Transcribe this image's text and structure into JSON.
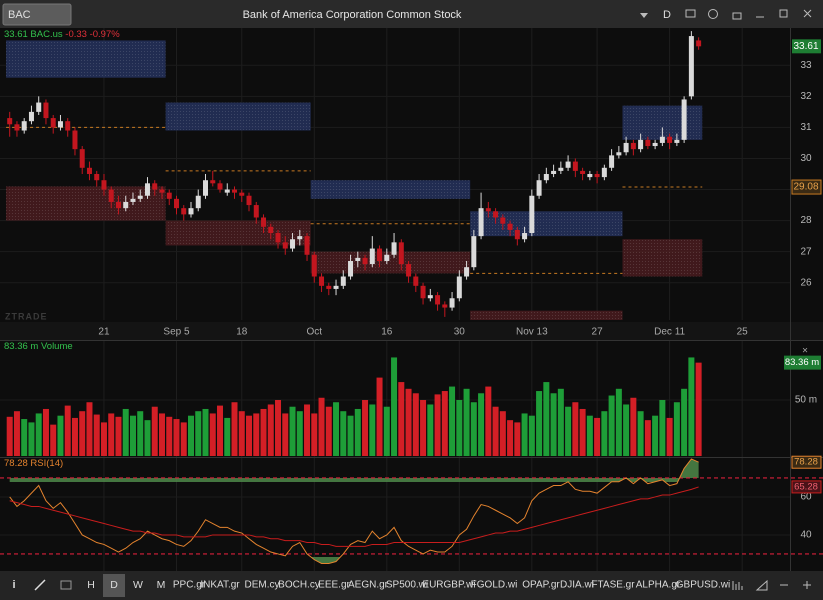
{
  "top_bar": {
    "symbol": "BAC",
    "title": "Bank of America Corporation Common Stock",
    "interval": "D"
  },
  "watermark": "ZTRADE",
  "chart_data": [
    {
      "type": "candlestick",
      "header": {
        "symbol": "BAC.us",
        "change": "-0.33",
        "change_pct": "-0.97%"
      },
      "up_color": "#dadada",
      "down_color": "#c3161f",
      "ylim": [
        24.8,
        34.2
      ],
      "yticks": [
        26,
        27,
        28,
        29,
        30,
        31,
        32,
        33
      ],
      "xlim": [
        -1.2,
        107.6
      ],
      "xticks": [
        {
          "value": 13,
          "label": "21"
        },
        {
          "value": 23,
          "label": "Sep 5"
        },
        {
          "value": 32,
          "label": "18"
        },
        {
          "value": 42,
          "label": "Oct"
        },
        {
          "value": 52,
          "label": "16"
        },
        {
          "value": 62,
          "label": "30"
        },
        {
          "value": 72,
          "label": "Nov 13"
        },
        {
          "value": 81,
          "label": "27"
        },
        {
          "value": 91,
          "label": "Dec 11"
        },
        {
          "value": 101,
          "label": "25"
        }
      ],
      "supply_color": "#26335e",
      "demand_color": "#4a1c20",
      "level_color": "#c87a22",
      "zones": [
        {
          "start": 0,
          "end": 21,
          "supply": [
            32.6,
            33.8
          ],
          "demand": [
            28.0,
            29.1
          ],
          "level": 31.0
        },
        {
          "start": 22,
          "end": 41,
          "supply": [
            30.9,
            31.8
          ],
          "demand": [
            27.2,
            28.0
          ],
          "level": 29.6
        },
        {
          "start": 42,
          "end": 63,
          "supply": [
            28.7,
            29.3
          ],
          "demand": [
            26.3,
            27.0
          ],
          "level": 27.9
        },
        {
          "start": 64,
          "end": 84,
          "supply": [
            27.5,
            28.3
          ],
          "demand": [
            24.8,
            25.1
          ],
          "level": 26.3
        },
        {
          "start": 85,
          "end": 95,
          "supply": [
            30.6,
            31.7
          ],
          "demand": [
            26.2,
            27.4
          ],
          "level": 29.08
        }
      ],
      "ohlc": [
        [
          31.3,
          31.5,
          30.7,
          31.1
        ],
        [
          31.1,
          31.2,
          30.7,
          30.9
        ],
        [
          30.9,
          31.3,
          30.8,
          31.2
        ],
        [
          31.2,
          31.7,
          31.1,
          31.5
        ],
        [
          31.5,
          32.0,
          31.4,
          31.8
        ],
        [
          31.8,
          31.9,
          31.1,
          31.3
        ],
        [
          31.3,
          31.4,
          30.8,
          31.0
        ],
        [
          31.0,
          31.4,
          30.9,
          31.2
        ],
        [
          31.2,
          31.3,
          30.7,
          30.9
        ],
        [
          30.9,
          31.0,
          30.1,
          30.3
        ],
        [
          30.3,
          30.4,
          29.5,
          29.7
        ],
        [
          29.7,
          29.9,
          29.3,
          29.5
        ],
        [
          29.5,
          29.6,
          29.1,
          29.3
        ],
        [
          29.3,
          29.5,
          28.8,
          29.0
        ],
        [
          29.0,
          29.1,
          28.4,
          28.6
        ],
        [
          28.6,
          28.8,
          28.2,
          28.4
        ],
        [
          28.4,
          28.8,
          28.3,
          28.6
        ],
        [
          28.6,
          28.9,
          28.5,
          28.7
        ],
        [
          28.7,
          29.0,
          28.6,
          28.8
        ],
        [
          28.8,
          29.4,
          28.7,
          29.2
        ],
        [
          29.2,
          29.3,
          28.8,
          29.0
        ],
        [
          29.0,
          29.1,
          28.7,
          28.9
        ],
        [
          28.9,
          29.0,
          28.5,
          28.7
        ],
        [
          28.7,
          28.8,
          28.2,
          28.4
        ],
        [
          28.4,
          28.5,
          28.0,
          28.2
        ],
        [
          28.2,
          28.6,
          28.1,
          28.4
        ],
        [
          28.4,
          29.0,
          28.3,
          28.8
        ],
        [
          28.8,
          29.5,
          28.7,
          29.3
        ],
        [
          29.3,
          29.6,
          29.1,
          29.2
        ],
        [
          29.2,
          29.3,
          28.9,
          29.0
        ],
        [
          28.9,
          29.2,
          28.8,
          29.0
        ],
        [
          29.0,
          29.1,
          28.7,
          28.9
        ],
        [
          28.9,
          29.0,
          28.6,
          28.8
        ],
        [
          28.8,
          28.9,
          28.3,
          28.5
        ],
        [
          28.5,
          28.6,
          27.9,
          28.1
        ],
        [
          28.1,
          28.2,
          27.6,
          27.8
        ],
        [
          27.8,
          27.9,
          27.4,
          27.6
        ],
        [
          27.6,
          27.7,
          27.1,
          27.3
        ],
        [
          27.3,
          27.5,
          26.9,
          27.1
        ],
        [
          27.1,
          27.6,
          27.0,
          27.4
        ],
        [
          27.4,
          27.7,
          27.2,
          27.5
        ],
        [
          27.5,
          27.6,
          26.7,
          26.9
        ],
        [
          26.9,
          27.0,
          26.0,
          26.2
        ],
        [
          26.2,
          26.3,
          25.7,
          25.9
        ],
        [
          25.9,
          26.0,
          25.6,
          25.8
        ],
        [
          25.8,
          26.1,
          25.6,
          25.9
        ],
        [
          25.9,
          26.4,
          25.8,
          26.2
        ],
        [
          26.2,
          26.9,
          26.1,
          26.7
        ],
        [
          26.7,
          27.0,
          26.5,
          26.8
        ],
        [
          26.8,
          26.9,
          26.4,
          26.6
        ],
        [
          26.6,
          27.5,
          26.5,
          27.1
        ],
        [
          27.1,
          27.2,
          26.5,
          26.7
        ],
        [
          26.7,
          27.1,
          26.6,
          26.9
        ],
        [
          26.9,
          27.6,
          26.8,
          27.3
        ],
        [
          27.3,
          27.4,
          26.4,
          26.6
        ],
        [
          26.6,
          26.7,
          26.0,
          26.2
        ],
        [
          26.2,
          26.3,
          25.7,
          25.9
        ],
        [
          25.9,
          26.0,
          25.3,
          25.5
        ],
        [
          25.5,
          25.8,
          25.4,
          25.6
        ],
        [
          25.6,
          25.7,
          25.1,
          25.3
        ],
        [
          25.3,
          25.4,
          24.9,
          25.2
        ],
        [
          25.2,
          25.7,
          25.1,
          25.5
        ],
        [
          25.5,
          26.4,
          25.4,
          26.2
        ],
        [
          26.2,
          26.7,
          26.1,
          26.5
        ],
        [
          26.5,
          27.7,
          26.4,
          27.5
        ],
        [
          27.5,
          28.9,
          27.4,
          28.4
        ],
        [
          28.4,
          28.6,
          28.1,
          28.3
        ],
        [
          28.3,
          28.4,
          27.9,
          28.1
        ],
        [
          28.1,
          28.2,
          27.7,
          27.9
        ],
        [
          27.9,
          28.0,
          27.5,
          27.7
        ],
        [
          27.7,
          27.8,
          27.2,
          27.4
        ],
        [
          27.4,
          27.8,
          27.3,
          27.6
        ],
        [
          27.6,
          29.0,
          27.5,
          28.8
        ],
        [
          28.8,
          29.5,
          28.7,
          29.3
        ],
        [
          29.3,
          29.7,
          29.2,
          29.5
        ],
        [
          29.5,
          29.8,
          29.4,
          29.6
        ],
        [
          29.6,
          29.9,
          29.5,
          29.7
        ],
        [
          29.7,
          30.1,
          29.6,
          29.9
        ],
        [
          29.9,
          30.0,
          29.4,
          29.6
        ],
        [
          29.6,
          29.7,
          29.3,
          29.5
        ],
        [
          29.4,
          29.6,
          29.3,
          29.5
        ],
        [
          29.5,
          29.6,
          29.2,
          29.4
        ],
        [
          29.4,
          29.8,
          29.3,
          29.7
        ],
        [
          29.7,
          30.3,
          29.6,
          30.1
        ],
        [
          30.1,
          30.4,
          30.0,
          30.2
        ],
        [
          30.2,
          30.7,
          30.1,
          30.5
        ],
        [
          30.5,
          30.6,
          30.1,
          30.3
        ],
        [
          30.3,
          30.8,
          30.2,
          30.6
        ],
        [
          30.6,
          30.7,
          30.3,
          30.4
        ],
        [
          30.4,
          30.6,
          30.3,
          30.5
        ],
        [
          30.5,
          31.0,
          30.4,
          30.7
        ],
        [
          30.7,
          30.8,
          30.3,
          30.5
        ],
        [
          30.5,
          30.8,
          30.4,
          30.6
        ],
        [
          30.6,
          32.0,
          30.5,
          31.9
        ],
        [
          32.0,
          34.1,
          31.9,
          33.94
        ],
        [
          33.8,
          33.9,
          33.5,
          33.61
        ]
      ]
    },
    {
      "type": "bar",
      "title": "Volume",
      "last_label": "83.36 m",
      "up_color": "#1e9e38",
      "down_color": "#d41f26",
      "ylim": [
        0,
        100
      ],
      "yticks": [
        {
          "value": 50,
          "label": "50 m"
        }
      ],
      "values": [
        35,
        40,
        33,
        30,
        38,
        42,
        28,
        36,
        45,
        34,
        40,
        48,
        37,
        30,
        38,
        35,
        42,
        36,
        40,
        32,
        44,
        38,
        35,
        33,
        30,
        36,
        40,
        42,
        38,
        45,
        34,
        48,
        40,
        36,
        38,
        42,
        46,
        50,
        38,
        44,
        40,
        46,
        38,
        52,
        44,
        48,
        40,
        36,
        42,
        50,
        46,
        70,
        44,
        88,
        66,
        60,
        56,
        50,
        46,
        55,
        58,
        62,
        50,
        60,
        48,
        56,
        62,
        44,
        40,
        32,
        30,
        38,
        36,
        58,
        66,
        56,
        60,
        44,
        48,
        42,
        36,
        34,
        40,
        54,
        60,
        46,
        52,
        40,
        32,
        36,
        50,
        34,
        48,
        60,
        88,
        83.36
      ]
    },
    {
      "type": "line",
      "title": "RSI(14)",
      "ylim": [
        22.6,
        80.5
      ],
      "yticks": [
        40,
        60
      ],
      "levels": [
        70,
        30
      ],
      "level_color": "#d8203a",
      "fill_color": "#4f8a4a",
      "series": [
        {
          "color": "#e4832e",
          "values": [
            60,
            55,
            58,
            62,
            66,
            58,
            54,
            57,
            52,
            46,
            40,
            38,
            36,
            35,
            33,
            31,
            33,
            36,
            38,
            42,
            40,
            38,
            37,
            35,
            34,
            37,
            42,
            48,
            46,
            44,
            44,
            42,
            41,
            38,
            35,
            33,
            31,
            30,
            29,
            34,
            36,
            30,
            27,
            25,
            25,
            26,
            30,
            35,
            37,
            36,
            42,
            38,
            40,
            44,
            37,
            34,
            32,
            30,
            32,
            31,
            31,
            34,
            40,
            43,
            50,
            56,
            55,
            53,
            51,
            49,
            46,
            49,
            58,
            62,
            64,
            66,
            66,
            68,
            64,
            63,
            63,
            62,
            65,
            68,
            68,
            70,
            67,
            70,
            67,
            68,
            69,
            66,
            67,
            75,
            80,
            78.28
          ]
        },
        {
          "color": "#c81d1d",
          "values": [
            58,
            57,
            56,
            55,
            55,
            54,
            53,
            52,
            51,
            50,
            49,
            48,
            47,
            46,
            45,
            44,
            43,
            42,
            42,
            41,
            41,
            40,
            40,
            40,
            39,
            39,
            39,
            39,
            40,
            40,
            40,
            40,
            40,
            40,
            39,
            39,
            38,
            38,
            37,
            37,
            37,
            36,
            36,
            35,
            35,
            34,
            34,
            34,
            34,
            34,
            35,
            35,
            35,
            36,
            36,
            36,
            36,
            36,
            36,
            36,
            36,
            36,
            36,
            37,
            38,
            39,
            40,
            41,
            41,
            42,
            42,
            43,
            44,
            45,
            46,
            47,
            48,
            49,
            50,
            51,
            52,
            53,
            54,
            55,
            56,
            57,
            58,
            59,
            59,
            60,
            61,
            61,
            62,
            63,
            64,
            65.28
          ]
        }
      ]
    }
  ],
  "toolbar": {
    "periods": [
      "H",
      "D",
      "W",
      "M"
    ],
    "symbols": [
      "PPC.gr",
      "INKAT.gr",
      "DEM.cy",
      "BOCH.cy",
      "EEE.gr",
      "AEGN.gr",
      "SP500.wi",
      "EURGBP.wi",
      "FGOLD.wi",
      "OPAP.gr",
      "DJIA.wi",
      "FTASE.gr",
      "ALPHA.gr",
      "GBPUSD.wi"
    ]
  }
}
